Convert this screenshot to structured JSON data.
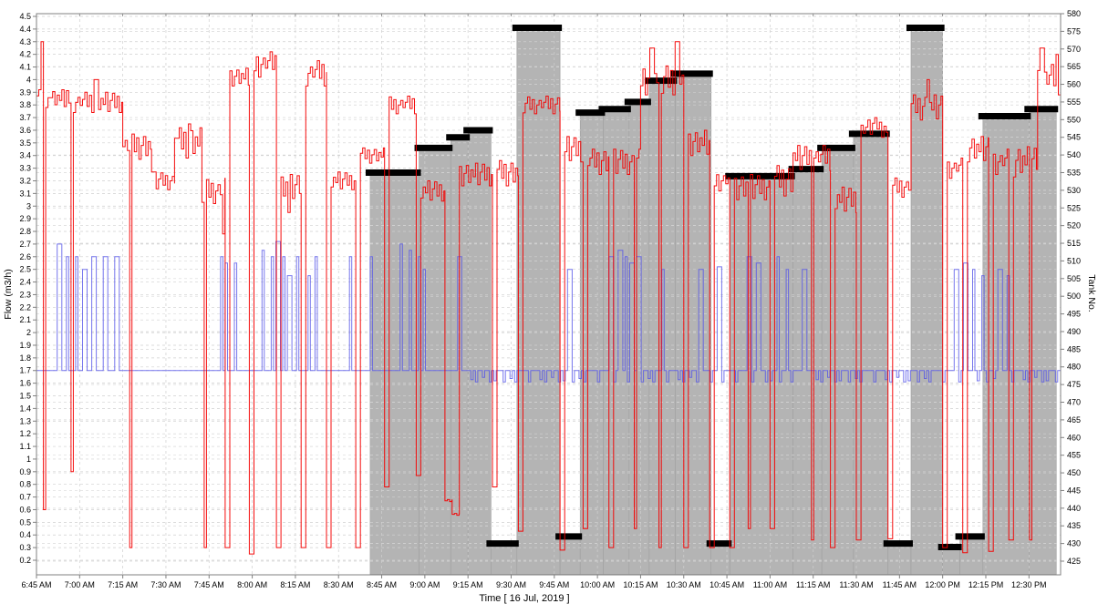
{
  "chart_data": {
    "type": "line",
    "title": "",
    "xlabel": "Time  [ 16 Jul, 2019 ]",
    "ylabel": "Flow (m3/h)",
    "ylabel_right": "Tank No.",
    "grid": true,
    "legend_position": "none",
    "x_axis": {
      "unit": "minutes since 6:45 AM",
      "min": 0,
      "max": 356,
      "tick_interval_min": 15,
      "ticks": [
        "6:45 AM",
        "7:00 AM",
        "7:15 AM",
        "7:30 AM",
        "7:45 AM",
        "8:00 AM",
        "8:15 AM",
        "8:30 AM",
        "8:45 AM",
        "9:00 AM",
        "9:15 AM",
        "9:30 AM",
        "9:45 AM",
        "10:00 AM",
        "10:15 AM",
        "10:30 AM",
        "10:45 AM",
        "11:00 AM",
        "11:15 AM",
        "11:30 AM",
        "11:45 AM",
        "12:00 PM",
        "12:15 PM",
        "12:30 PM"
      ]
    },
    "left_axis": {
      "label": "Flow (m3/h)",
      "min": 0.2,
      "max": 4.5,
      "step": 0.1,
      "ticks": [
        "0.2",
        "0.3",
        "0.4",
        "0.5",
        "0.6",
        "0.7",
        "0.8",
        "0.9",
        "1",
        "1.1",
        "1.2",
        "1.3",
        "1.4",
        "1.5",
        "1.6",
        "1.7",
        "1.8",
        "1.9",
        "2",
        "2.1",
        "2.2",
        "2.3",
        "2.4",
        "2.5",
        "2.6",
        "2.7",
        "2.8",
        "2.9",
        "3",
        "3.1",
        "3.2",
        "3.3",
        "3.4",
        "3.5",
        "3.6",
        "3.7",
        "3.8",
        "3.9",
        "4",
        "4.1",
        "4.2",
        "4.3",
        "4.4",
        "4.5"
      ]
    },
    "right_axis": {
      "label": "Tank No.",
      "min": 425,
      "max": 580,
      "step": 5,
      "ticks": [
        "425",
        "430",
        "435",
        "440",
        "445",
        "450",
        "455",
        "460",
        "465",
        "470",
        "475",
        "480",
        "485",
        "490",
        "495",
        "500",
        "505",
        "510",
        "515",
        "520",
        "525",
        "530",
        "535",
        "540",
        "545",
        "550",
        "555",
        "560",
        "565",
        "570",
        "575",
        "580"
      ]
    },
    "colors": {
      "flow_red": "#f40000",
      "flow_blue": "#5454e8",
      "tank_fill": "#b4b4b4",
      "tank_edge": "#9e9e9e",
      "tank_marker": "#000000",
      "grid": "#cfcfcf",
      "frame": "#808080"
    },
    "series": {
      "flow_red": {
        "axis": "left",
        "segments": [
          [
            0,
            12,
            3.85,
            0.07
          ],
          [
            12,
            30,
            3.82,
            0.08
          ],
          [
            30,
            40,
            3.47,
            0.1
          ],
          [
            40,
            48,
            3.2,
            0.07
          ],
          [
            48,
            57.5,
            3.5,
            0.12
          ],
          [
            57.5,
            65.6,
            3.12,
            0.1
          ],
          [
            65.6,
            74,
            4.02,
            0.07
          ],
          [
            74,
            83.4,
            4.12,
            0.1
          ],
          [
            83.4,
            92,
            3.15,
            0.1
          ],
          [
            92,
            100.8,
            4.05,
            0.1
          ],
          [
            100.8,
            111,
            3.2,
            0.07
          ],
          [
            111,
            121,
            3.4,
            0.06
          ],
          [
            121,
            132,
            3.8,
            0.07
          ],
          [
            132,
            142,
            3.12,
            0.08
          ],
          [
            142,
            144.5,
            0.67,
            0.02
          ],
          [
            144.5,
            147,
            0.56,
            0.01
          ],
          [
            147,
            158.5,
            3.25,
            0.09
          ],
          [
            158.5,
            167.5,
            3.26,
            0.1
          ],
          [
            167.5,
            182,
            3.8,
            0.07
          ],
          [
            182,
            190,
            3.45,
            0.1
          ],
          [
            190,
            199,
            3.35,
            0.1
          ],
          [
            199,
            210,
            3.35,
            0.1
          ],
          [
            210,
            225,
            4.0,
            0.12
          ],
          [
            225,
            234,
            3.5,
            0.1
          ],
          [
            234,
            241,
            3.2,
            0.08
          ],
          [
            241,
            255,
            3.15,
            0.1
          ],
          [
            255,
            263,
            3.2,
            0.12
          ],
          [
            263,
            276,
            3.38,
            0.1
          ],
          [
            276,
            285,
            3.05,
            0.1
          ],
          [
            285,
            296,
            3.6,
            0.08
          ],
          [
            296,
            304,
            3.15,
            0.08
          ],
          [
            304,
            315,
            3.78,
            0.1
          ],
          [
            315,
            322,
            3.3,
            0.08
          ],
          [
            322,
            331,
            3.45,
            0.1
          ],
          [
            331,
            338,
            3.35,
            0.1
          ],
          [
            338,
            348,
            3.35,
            0.12
          ],
          [
            348,
            356,
            4.0,
            0.12
          ]
        ],
        "spikes": [
          [
            0.9,
            4.3
          ],
          [
            20,
            4.0
          ],
          [
            52,
            3.65
          ],
          [
            213,
            4.25
          ],
          [
            222,
            4.3
          ],
          [
            291,
            3.7
          ],
          [
            309,
            4.0
          ],
          [
            348.8,
            4.25
          ],
          [
            354,
            4.2
          ]
        ],
        "dips": [
          [
            2,
            0.6
          ],
          [
            11.7,
            0.9
          ],
          [
            32,
            0.3
          ],
          [
            58,
            0.3
          ],
          [
            64,
            2.78
          ],
          [
            65.6,
            0.3
          ],
          [
            74,
            0.25
          ],
          [
            83.4,
            0.3
          ],
          [
            87,
            2.95
          ],
          [
            92,
            0.3
          ],
          [
            100.8,
            0.3
          ],
          [
            111,
            0.3
          ],
          [
            121,
            0.78
          ],
          [
            132,
            0.87
          ],
          [
            158.5,
            0.78
          ],
          [
            167.5,
            0.43
          ],
          [
            182,
            0.28
          ],
          [
            190,
            0.45
          ],
          [
            199,
            0.3
          ],
          [
            207.6,
            0.45
          ],
          [
            216,
            0.3
          ],
          [
            225,
            0.3
          ],
          [
            234,
            0.3
          ],
          [
            241,
            0.3
          ],
          [
            247,
            0.45
          ],
          [
            255,
            0.45
          ],
          [
            269,
            0.36
          ],
          [
            276,
            0.3
          ],
          [
            285,
            0.36
          ],
          [
            296,
            0.37
          ],
          [
            315,
            0.3
          ],
          [
            322,
            0.26
          ],
          [
            331,
            0.27
          ],
          [
            338,
            0.36
          ],
          [
            345,
            0.36
          ]
        ]
      },
      "flow_blue": {
        "axis": "left",
        "segments": [
          [
            0,
            147,
            1.7,
            0
          ],
          [
            147,
            356,
            1.7,
            0.09
          ]
        ],
        "spikes": [
          [
            7,
            2.7
          ],
          [
            10,
            2.6
          ],
          [
            13,
            2.6
          ],
          [
            16,
            2.5
          ],
          [
            19,
            2.6
          ],
          [
            23,
            2.6
          ],
          [
            27,
            2.6
          ],
          [
            63.5,
            2.6
          ],
          [
            65,
            2.55
          ],
          [
            68,
            2.55
          ],
          [
            78,
            2.65
          ],
          [
            81,
            2.6
          ],
          [
            83,
            2.72
          ],
          [
            85,
            2.6
          ],
          [
            87,
            2.45
          ],
          [
            90,
            2.6
          ],
          [
            94,
            2.45
          ],
          [
            96,
            2.6
          ],
          [
            108,
            2.6
          ],
          [
            115.5,
            2.6
          ],
          [
            126,
            2.7
          ],
          [
            129,
            2.65
          ],
          [
            132,
            2.6
          ],
          [
            134,
            2.5
          ],
          [
            146,
            2.6
          ],
          [
            184.5,
            2.5
          ],
          [
            199,
            2.6
          ],
          [
            202,
            2.65
          ],
          [
            204,
            2.6
          ],
          [
            206,
            2.55
          ],
          [
            208.5,
            2.6
          ],
          [
            217,
            2.5
          ],
          [
            230,
            2.5
          ],
          [
            236.5,
            2.52
          ],
          [
            247,
            2.6
          ],
          [
            250,
            2.55
          ],
          [
            257,
            2.6
          ],
          [
            260,
            2.5
          ],
          [
            266,
            2.5
          ],
          [
            319,
            2.5
          ],
          [
            322,
            2.55
          ],
          [
            325,
            2.5
          ],
          [
            328,
            2.45
          ],
          [
            334,
            2.5
          ],
          [
            337,
            2.45
          ]
        ],
        "dips": []
      },
      "tank": {
        "axis": "right",
        "start_min": 116,
        "end_min": 354.5,
        "steps": [
          [
            116,
            535
          ],
          [
            133,
            542
          ],
          [
            144,
            545
          ],
          [
            150,
            547
          ],
          [
            158,
            430
          ],
          [
            167,
            576
          ],
          [
            182,
            432
          ],
          [
            189,
            552
          ],
          [
            197,
            553
          ],
          [
            206,
            555
          ],
          [
            213,
            561
          ],
          [
            222,
            563
          ],
          [
            234.5,
            430
          ],
          [
            241,
            534
          ],
          [
            263,
            536
          ],
          [
            273,
            542
          ],
          [
            284,
            546
          ],
          [
            296,
            430
          ],
          [
            304,
            576
          ],
          [
            315,
            429
          ],
          [
            321,
            432
          ],
          [
            329,
            551
          ],
          [
            345,
            553
          ]
        ]
      }
    }
  }
}
